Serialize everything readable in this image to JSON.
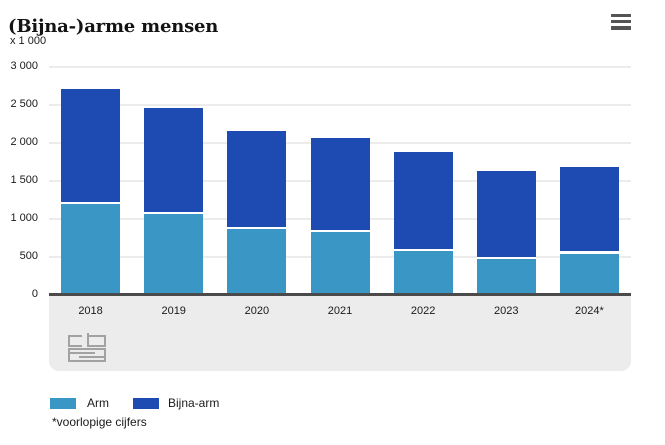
{
  "header": {
    "title": "(Bijna-)arme mensen",
    "unit_label": "x 1 000"
  },
  "chart_data": {
    "type": "bar",
    "stacked": true,
    "title": "(Bijna-)arme mensen",
    "unit_label": "x 1 000",
    "categories": [
      "2018",
      "2019",
      "2020",
      "2021",
      "2022",
      "2023",
      "2024*"
    ],
    "series": [
      {
        "name": "Arm",
        "color": "#3a97c5",
        "values": [
          1190,
          1060,
          860,
          820,
          570,
          470,
          540
        ]
      },
      {
        "name": "Bijna-arm",
        "color": "#1d4bb2",
        "values": [
          1510,
          1390,
          1290,
          1240,
          1310,
          1150,
          1140
        ]
      }
    ],
    "totals": [
      2700,
      2450,
      2150,
      2060,
      1880,
      1620,
      1680
    ],
    "xlabel": "",
    "ylabel": "x 1 000",
    "ylim": [
      0,
      3000
    ],
    "ytick_step": 500,
    "yticks": [
      "0",
      "500",
      "1 000",
      "1 500",
      "2 000",
      "2 500",
      "3 000"
    ],
    "grid": true,
    "legend_position": "bottom"
  },
  "legend": {
    "items": [
      {
        "label": "Arm",
        "color": "#3a97c5"
      },
      {
        "label": "Bijna-arm",
        "color": "#1d4bb2"
      }
    ]
  },
  "footnote": "*voorlopige cijfers",
  "icons": {
    "menu": "hamburger-icon",
    "logo": "cbs-logo"
  },
  "colors": {
    "series_arm": "#3a97c5",
    "series_bijna_arm": "#1d4bb2",
    "axis": "#4a4a4a",
    "gridline": "#ececec",
    "band": "#ececec",
    "text": "#1a1a1a"
  }
}
